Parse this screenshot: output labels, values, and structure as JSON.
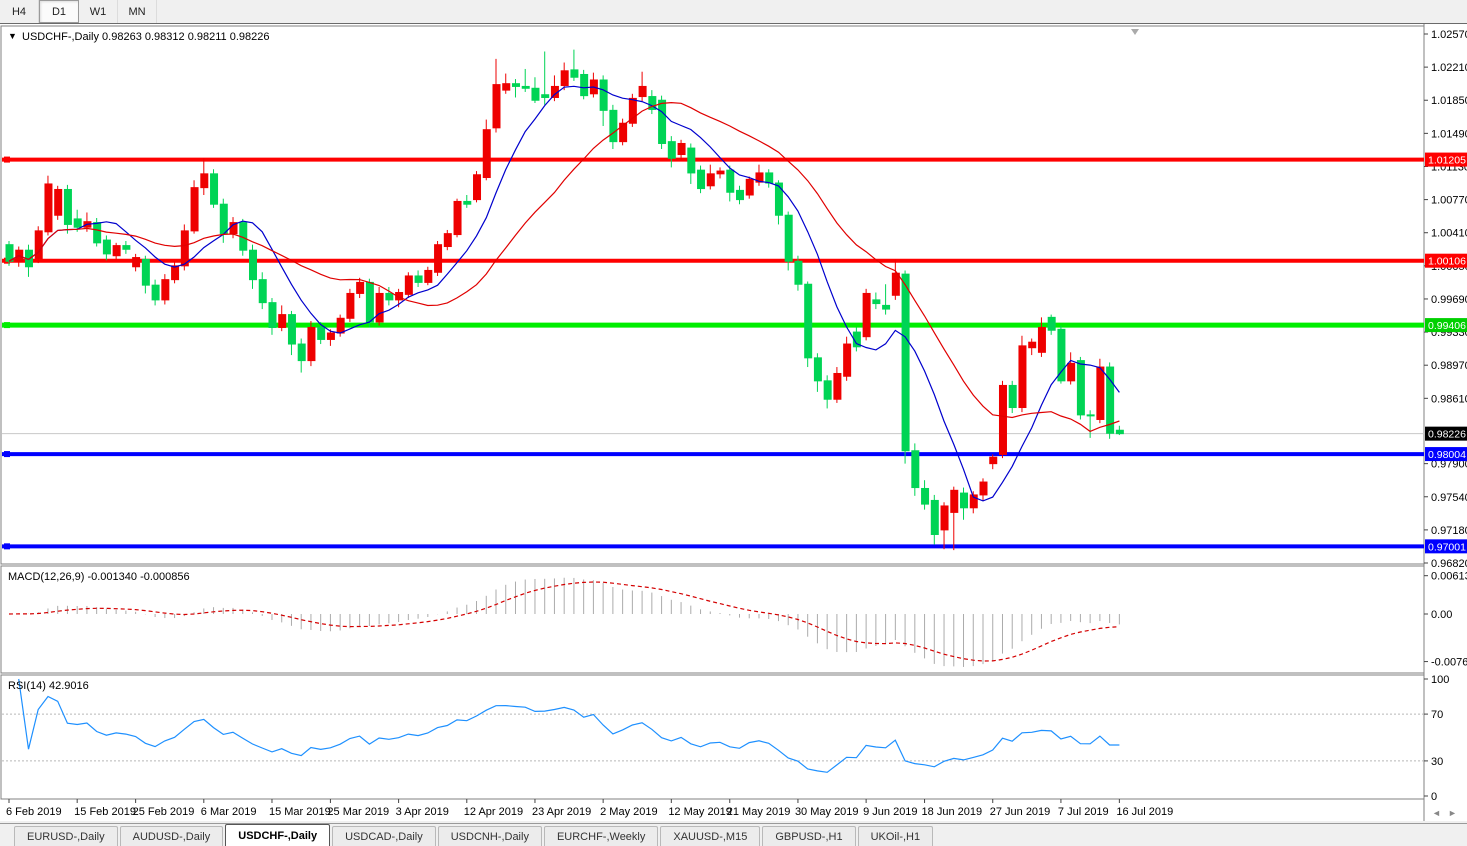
{
  "toolbar": {
    "timeframes": [
      "H4",
      "D1",
      "W1",
      "MN"
    ],
    "active_timeframe": "D1"
  },
  "window": {
    "collapse_icon": "▼",
    "title": "USDCHF-,Daily",
    "quote_line": "0.98263 0.98312 0.98211 0.98226",
    "quote": {
      "open": "0.98263",
      "high": "0.98312",
      "low": "0.98211",
      "close": "0.98226"
    }
  },
  "colors": {
    "bull": "#ee0000",
    "bear": "#00d455",
    "ma_fast": "#0000cd",
    "ma_slow": "#e00000",
    "macd_hist": "#ababab",
    "macd_signal": "#d40000",
    "rsi_line": "#1e90ff",
    "hline_red": "#ff0000",
    "hline_green": "#00ee00",
    "hline_blue": "#0000ff",
    "current_price_line": "#c8c8c8",
    "current_price_badge": "#000000",
    "pane_border": "#808080",
    "axis_text": "#000000",
    "shift_marker": "#aaaaaa"
  },
  "price_axis": {
    "ticks": [
      "1.02570",
      "1.02210",
      "1.01850",
      "1.01490",
      "1.01130",
      "1.00770",
      "1.00410",
      "1.00050",
      "0.99690",
      "0.99330",
      "0.98970",
      "0.98610",
      "0.97900",
      "0.97540",
      "0.97180",
      "0.96820"
    ],
    "badges": [
      {
        "label": "1.01205",
        "value": 1.01205,
        "bg": "#ff0000"
      },
      {
        "label": "1.00106",
        "value": 1.00106,
        "bg": "#ff0000"
      },
      {
        "label": "0.99406",
        "value": 0.99406,
        "bg": "#00d000"
      },
      {
        "label": "0.98226",
        "value": 0.98226,
        "bg": "#000000"
      },
      {
        "label": "0.98004",
        "value": 0.98004,
        "bg": "#0000ff"
      },
      {
        "label": "0.97001",
        "value": 0.97001,
        "bg": "#0000ff"
      }
    ]
  },
  "hlines": [
    {
      "price": 1.01205,
      "color": "#ff0000",
      "width": 4
    },
    {
      "price": 1.00106,
      "color": "#ff0000",
      "width": 4
    },
    {
      "price": 0.99406,
      "color": "#00ee00",
      "width": 5
    },
    {
      "price": 0.98004,
      "color": "#0000ff",
      "width": 4
    },
    {
      "price": 0.97001,
      "color": "#0000ff",
      "width": 4
    }
  ],
  "current_price": {
    "value": 0.98226,
    "label": "0.98226"
  },
  "ma": {
    "fast_period": 8,
    "slow_period": 20
  },
  "indicators": {
    "macd": {
      "title": "MACD(12,26,9)",
      "values_text": "-0.001340 -0.000856",
      "params": {
        "fast": 12,
        "slow": 26,
        "signal": 9
      },
      "axis": [
        {
          "label": "0.00613",
          "v": 0.00613
        },
        {
          "label": "0.00",
          "v": 0
        },
        {
          "label": "-0.007612",
          "v": -0.007612
        }
      ]
    },
    "rsi": {
      "title": "RSI(14)",
      "value_text": "42.9016",
      "period": 14,
      "levels": [
        70,
        30
      ],
      "axis": [
        {
          "label": "100",
          "v": 100
        },
        {
          "label": "70",
          "v": 70
        },
        {
          "label": "30",
          "v": 30
        },
        {
          "label": "0",
          "v": 0
        }
      ]
    }
  },
  "date_axis": [
    {
      "label": "6 Feb 2019",
      "i": 0
    },
    {
      "label": "15 Feb 2019",
      "i": 7
    },
    {
      "label": "25 Feb 2019",
      "i": 13
    },
    {
      "label": "6 Mar 2019",
      "i": 20
    },
    {
      "label": "15 Mar 2019",
      "i": 27
    },
    {
      "label": "25 Mar 2019",
      "i": 33
    },
    {
      "label": "3 Apr 2019",
      "i": 40
    },
    {
      "label": "12 Apr 2019",
      "i": 47
    },
    {
      "label": "23 Apr 2019",
      "i": 54
    },
    {
      "label": "2 May 2019",
      "i": 61
    },
    {
      "label": "12 May 2019",
      "i": 68
    },
    {
      "label": "21 May 2019",
      "i": 74
    },
    {
      "label": "30 May 2019",
      "i": 81
    },
    {
      "label": "9 Jun 2019",
      "i": 88
    },
    {
      "label": "18 Jun 2019",
      "i": 94
    },
    {
      "label": "27 Jun 2019",
      "i": 101
    },
    {
      "label": "7 Jul 2019",
      "i": 108
    },
    {
      "label": "16 Jul 2019",
      "i": 114
    }
  ],
  "scrollbar": {
    "left_arrow": "◄",
    "right_arrow": "►"
  },
  "tabs": {
    "items": [
      "EURUSD-,Daily",
      "AUDUSD-,Daily",
      "USDCHF-,Daily",
      "USDCAD-,Daily",
      "USDCNH-,Daily",
      "EURCHF-,Weekly",
      "XAUUSD-,M15",
      "GBPUSD-,H1",
      "UKOil-,H1"
    ],
    "active": "USDCHF-,Daily"
  },
  "chart_data": {
    "type": "candlestick",
    "symbol": "USDCHF",
    "timeframe": "Daily",
    "ylim": [
      0.9682,
      1.0257
    ],
    "candles": [
      [
        "6 Feb 2019",
        1.0028,
        1.0032,
        1.0005,
        1.001
      ],
      [
        "7 Feb 2019",
        1.001,
        1.0026,
        1.0004,
        1.0022
      ],
      [
        "8 Feb 2019",
        1.0022,
        1.0028,
        0.9993,
        1.0004
      ],
      [
        "11 Feb 2019",
        1.0013,
        1.0048,
        1.0008,
        1.0043
      ],
      [
        "12 Feb 2019",
        1.0042,
        1.0103,
        1.0038,
        1.0094
      ],
      [
        "13 Feb 2019",
        1.006,
        1.0092,
        1.0055,
        1.0088
      ],
      [
        "14 Feb 2019",
        1.0088,
        1.0093,
        1.004,
        1.005
      ],
      [
        "15 Feb 2019",
        1.0056,
        1.0066,
        1.0042,
        1.0047
      ],
      [
        "18 Feb 2019",
        1.0047,
        1.0063,
        1.0042,
        1.0053
      ],
      [
        "19 Feb 2019",
        1.0052,
        1.0057,
        1.0026,
        1.003
      ],
      [
        "20 Feb 2019",
        1.0033,
        1.0038,
        1.0011,
        1.0018
      ],
      [
        "21 Feb 2019",
        1.0016,
        1.003,
        1.0012,
        1.0027
      ],
      [
        "22 Feb 2019",
        1.0027,
        1.0032,
        1.0018,
        1.0023
      ],
      [
        "25 Feb 2019",
        1.0004,
        1.0018,
        0.9999,
        1.0014
      ],
      [
        "26 Feb 2019",
        1.0012,
        1.0016,
        0.9975,
        0.9984
      ],
      [
        "27 Feb 2019",
        0.9984,
        0.999,
        0.9962,
        0.9968
      ],
      [
        "28 Feb 2019",
        0.9968,
        0.9996,
        0.9963,
        0.999
      ],
      [
        "1 Mar 2019",
        0.999,
        1.001,
        0.9986,
        1.0005
      ],
      [
        "4 Mar 2019",
        1.0005,
        1.005,
        1.0,
        1.0043
      ],
      [
        "5 Mar 2019",
        1.0043,
        1.0098,
        1.004,
        1.009
      ],
      [
        "6 Mar 2019",
        1.009,
        1.0122,
        1.0082,
        1.0105
      ],
      [
        "7 Mar 2019",
        1.0105,
        1.011,
        1.0068,
        1.0072
      ],
      [
        "8 Mar 2019",
        1.0072,
        1.0078,
        1.003,
        1.004
      ],
      [
        "11 Mar 2019",
        1.004,
        1.0058,
        1.0035,
        1.0052
      ],
      [
        "12 Mar 2019",
        1.0052,
        1.0056,
        1.0016,
        1.0022
      ],
      [
        "13 Mar 2019",
        1.0022,
        1.0028,
        0.998,
        0.999
      ],
      [
        "14 Mar 2019",
        0.999,
        0.9998,
        0.9958,
        0.9965
      ],
      [
        "15 Mar 2019",
        0.9965,
        0.997,
        0.993,
        0.9938
      ],
      [
        "18 Mar 2019",
        0.9938,
        0.9962,
        0.9934,
        0.9952
      ],
      [
        "19 Mar 2019",
        0.9952,
        0.9956,
        0.9908,
        0.992
      ],
      [
        "20 Mar 2019",
        0.992,
        0.9926,
        0.9889,
        0.9902
      ],
      [
        "21 Mar 2019",
        0.9902,
        0.9945,
        0.9896,
        0.9938
      ],
      [
        "22 Mar 2019",
        0.9938,
        0.9944,
        0.992,
        0.9925
      ],
      [
        "25 Mar 2019",
        0.9925,
        0.9936,
        0.9918,
        0.9932
      ],
      [
        "26 Mar 2019",
        0.9932,
        0.9952,
        0.9928,
        0.9948
      ],
      [
        "27 Mar 2019",
        0.9948,
        0.998,
        0.9944,
        0.9975
      ],
      [
        "28 Mar 2019",
        0.9975,
        0.9992,
        0.997,
        0.9987
      ],
      [
        "29 Mar 2019",
        0.9987,
        0.9991,
        0.9938,
        0.9944
      ],
      [
        "1 Apr 2019",
        0.9944,
        0.9982,
        0.994,
        0.9975
      ],
      [
        "2 Apr 2019",
        0.9975,
        0.9982,
        0.9962,
        0.9968
      ],
      [
        "3 Apr 2019",
        0.9968,
        0.998,
        0.996,
        0.9976
      ],
      [
        "4 Apr 2019",
        0.9974,
        0.9998,
        0.997,
        0.9994
      ],
      [
        "5 Apr 2019",
        0.9994,
        1.0,
        0.9982,
        0.9987
      ],
      [
        "8 Apr 2019",
        0.9987,
        1.0004,
        0.9984,
        1.0
      ],
      [
        "9 Apr 2019",
        0.9998,
        1.0032,
        0.9994,
        1.0028
      ],
      [
        "10 Apr 2019",
        1.0026,
        1.0044,
        1.0022,
        1.004
      ],
      [
        "11 Apr 2019",
        1.0039,
        1.0078,
        1.0036,
        1.0075
      ],
      [
        "12 Apr 2019",
        1.0075,
        1.0082,
        1.0068,
        1.0072
      ],
      [
        "15 Apr 2019",
        1.0077,
        1.0108,
        1.0074,
        1.0104
      ],
      [
        "16 Apr 2019",
        1.0101,
        1.0164,
        1.0098,
        1.0153
      ],
      [
        "17 Apr 2019",
        1.0155,
        1.023,
        1.015,
        1.0202
      ],
      [
        "18 Apr 2019",
        1.0196,
        1.0214,
        1.0192,
        1.0203
      ],
      [
        "19 Apr 2019",
        1.0203,
        1.0208,
        1.0188,
        1.02
      ],
      [
        "22 Apr 2019",
        1.02,
        1.0219,
        1.0194,
        1.0198
      ],
      [
        "23 Apr 2019",
        1.0198,
        1.021,
        1.0182,
        1.0185
      ],
      [
        "24 Apr 2019",
        1.0191,
        1.0238,
        1.018,
        1.0188
      ],
      [
        "25 Apr 2019",
        1.0188,
        1.0212,
        1.0184,
        1.02
      ],
      [
        "26 Apr 2019",
        1.0201,
        1.0226,
        1.0196,
        1.0217
      ],
      [
        "29 Apr 2019",
        1.0218,
        1.024,
        1.0206,
        1.021
      ],
      [
        "30 Apr 2019",
        1.0213,
        1.0218,
        1.0186,
        1.019
      ],
      [
        "1 May 2019",
        1.0192,
        1.0215,
        1.0188,
        1.0207
      ],
      [
        "2 May 2019",
        1.0207,
        1.0212,
        1.0157,
        1.0174
      ],
      [
        "3 May 2019",
        1.0174,
        1.018,
        1.0132,
        1.014
      ],
      [
        "6 May 2019",
        1.014,
        1.0165,
        1.0136,
        1.016
      ],
      [
        "7 May 2019",
        1.016,
        1.0192,
        1.0156,
        1.0187
      ],
      [
        "8 May 2019",
        1.0189,
        1.0216,
        1.0184,
        1.02
      ],
      [
        "9 May 2019",
        1.0189,
        1.0196,
        1.017,
        1.0175
      ],
      [
        "10 May 2019",
        1.0185,
        1.019,
        1.0132,
        1.0138
      ],
      [
        "13 May 2019",
        1.014,
        1.0146,
        1.0112,
        1.0122
      ],
      [
        "14 May 2019",
        1.0126,
        1.0142,
        1.012,
        1.0138
      ],
      [
        "15 May 2019",
        1.0133,
        1.0138,
        1.0094,
        1.0106
      ],
      [
        "16 May 2019",
        1.0109,
        1.0114,
        1.0084,
        1.0089
      ],
      [
        "17 May 2019",
        1.0092,
        1.0115,
        1.0088,
        1.0105
      ],
      [
        "20 May 2019",
        1.0105,
        1.0112,
        1.01,
        1.0108
      ],
      [
        "21 May 2019",
        1.0109,
        1.0114,
        1.0075,
        1.0085
      ],
      [
        "22 May 2019",
        1.0087,
        1.0092,
        1.0072,
        1.0077
      ],
      [
        "23 May 2019",
        1.0082,
        1.0102,
        1.0078,
        1.0099
      ],
      [
        "24 May 2019",
        1.0096,
        1.0115,
        1.0092,
        1.0106
      ],
      [
        "27 May 2019",
        1.0106,
        1.011,
        1.009,
        1.0095
      ],
      [
        "28 May 2019",
        1.0095,
        1.0098,
        1.005,
        1.006
      ],
      [
        "29 May 2019",
        1.006,
        1.0064,
        1.0,
        1.001
      ],
      [
        "30 May 2019",
        1.001,
        1.0016,
        0.9978,
        0.9985
      ],
      [
        "31 May 2019",
        0.9985,
        0.9988,
        0.9895,
        0.9905
      ],
      [
        "3 Jun 2019",
        0.9905,
        0.991,
        0.9868,
        0.988
      ],
      [
        "4 Jun 2019",
        0.988,
        0.9886,
        0.985,
        0.986
      ],
      [
        "5 Jun 2019",
        0.986,
        0.9895,
        0.9856,
        0.9888
      ],
      [
        "6 Jun 2019",
        0.9885,
        0.9928,
        0.988,
        0.992
      ],
      [
        "7 Jun 2019",
        0.9933,
        0.9938,
        0.9912,
        0.9917
      ],
      [
        "10 Jun 2019",
        0.9928,
        0.998,
        0.9924,
        0.9975
      ],
      [
        "11 Jun 2019",
        0.9968,
        0.9976,
        0.9958,
        0.9964
      ],
      [
        "12 Jun 2019",
        0.9962,
        0.9985,
        0.9952,
        0.9958
      ],
      [
        "13 Jun 2019",
        0.9973,
        1.0012,
        0.9968,
        0.9997
      ],
      [
        "14 Jun 2019",
        0.9996,
        1.0,
        0.979,
        0.9804
      ],
      [
        "17 Jun 2019",
        0.9804,
        0.9812,
        0.9755,
        0.9764
      ],
      [
        "18 Jun 2019",
        0.9763,
        0.9772,
        0.974,
        0.9746
      ],
      [
        "19 Jun 2019",
        0.975,
        0.9756,
        0.9702,
        0.9713
      ],
      [
        "20 Jun 2019",
        0.9718,
        0.9748,
        0.9697,
        0.9744
      ],
      [
        "21 Jun 2019",
        0.9737,
        0.9765,
        0.9696,
        0.9761
      ],
      [
        "24 Jun 2019",
        0.9758,
        0.9764,
        0.9729,
        0.9742
      ],
      [
        "25 Jun 2019",
        0.9742,
        0.976,
        0.9736,
        0.9756
      ],
      [
        "26 Jun 2019",
        0.9756,
        0.9774,
        0.975,
        0.977
      ],
      [
        "27 Jun 2019",
        0.979,
        0.98,
        0.9784,
        0.9797
      ],
      [
        "28 Jun 2019",
        0.98,
        0.988,
        0.9796,
        0.9875
      ],
      [
        "1 Jul 2019",
        0.9875,
        0.988,
        0.9845,
        0.9851
      ],
      [
        "2 Jul 2019",
        0.9851,
        0.9929,
        0.9846,
        0.9918
      ],
      [
        "3 Jul 2019",
        0.9916,
        0.9926,
        0.9908,
        0.9922
      ],
      [
        "4 Jul 2019",
        0.9911,
        0.9949,
        0.9906,
        0.9938
      ],
      [
        "5 Jul 2019",
        0.9949,
        0.9952,
        0.993,
        0.9935
      ],
      [
        "8 Jul 2019",
        0.9936,
        0.994,
        0.9877,
        0.988
      ],
      [
        "9 Jul 2019",
        0.988,
        0.9911,
        0.9876,
        0.9899
      ],
      [
        "10 Jul 2019",
        0.9902,
        0.9906,
        0.9838,
        0.9843
      ],
      [
        "11 Jul 2019",
        0.9843,
        0.9848,
        0.9818,
        0.9842
      ],
      [
        "12 Jul 2019",
        0.9838,
        0.9904,
        0.9834,
        0.9895
      ],
      [
        "15 Jul 2019",
        0.9895,
        0.99,
        0.9817,
        0.9823
      ],
      [
        "16 Jul 2019",
        0.98263,
        0.98312,
        0.98211,
        0.98226
      ]
    ]
  }
}
